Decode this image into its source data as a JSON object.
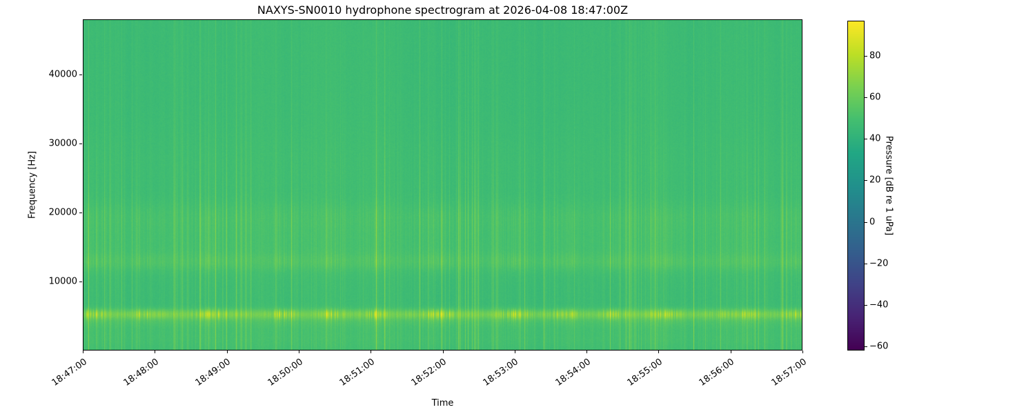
{
  "chart_data": {
    "type": "heatmap",
    "title": "NAXYS-SN0010 hydrophone spectrogram at 2026-04-08 18:47:00Z",
    "xlabel": "Time",
    "ylabel": "Frequency [Hz]",
    "x_tick_labels": [
      "18:47:00",
      "18:48:00",
      "18:49:00",
      "18:50:00",
      "18:51:00",
      "18:52:00",
      "18:53:00",
      "18:54:00",
      "18:55:00",
      "18:56:00",
      "18:57:00"
    ],
    "x_range_seconds": 600,
    "y_ticks": [
      10000,
      20000,
      30000,
      40000
    ],
    "y_tick_labels": [
      "10000",
      "20000",
      "30000",
      "40000"
    ],
    "ylim": [
      0,
      48000
    ],
    "grid": false,
    "colormap": "viridis",
    "colorbar": {
      "label": "Pressure [dB re 1 uPa]",
      "ticks": [
        -60,
        -40,
        -20,
        0,
        20,
        40,
        60,
        80
      ],
      "tick_labels": [
        "−60",
        "−40",
        "−20",
        "0",
        "20",
        "40",
        "60",
        "80"
      ],
      "vmin": -62,
      "vmax": 97,
      "position": "right"
    },
    "content": {
      "background_db": 46,
      "noise_sigma_db": 1.5,
      "bands": [
        {
          "center_hz": 5200,
          "width_hz": 500,
          "gain_db": 26,
          "pulsing": 1.2
        },
        {
          "center_hz": 4200,
          "width_hz": 800,
          "gain_db": 8,
          "pulsing": 0.8
        },
        {
          "center_hz": 12800,
          "width_hz": 900,
          "gain_db": 7,
          "pulsing": 0.9
        },
        {
          "center_hz": 15500,
          "width_hz": 3000,
          "gain_db": 5,
          "pulsing": 1.0
        },
        {
          "center_hz": 19500,
          "width_hz": 1500,
          "gain_db": 4,
          "pulsing": 0.9
        },
        {
          "center_hz": 1600,
          "width_hz": 1300,
          "gain_db": 5,
          "pulsing": 0.7
        },
        {
          "center_hz": 27000,
          "width_hz": 4000,
          "gain_db": 2,
          "pulsing": 0.6
        }
      ],
      "vertical_striations": {
        "sparse_line_gain_db": 22,
        "clustered": true
      },
      "description": "Broadband ambient field near 46 dB (green) with a bright pulsed tonal band near 5 kHz, weaker striated bands between 10 and 20 kHz, and faint full-height vertical transients"
    }
  }
}
